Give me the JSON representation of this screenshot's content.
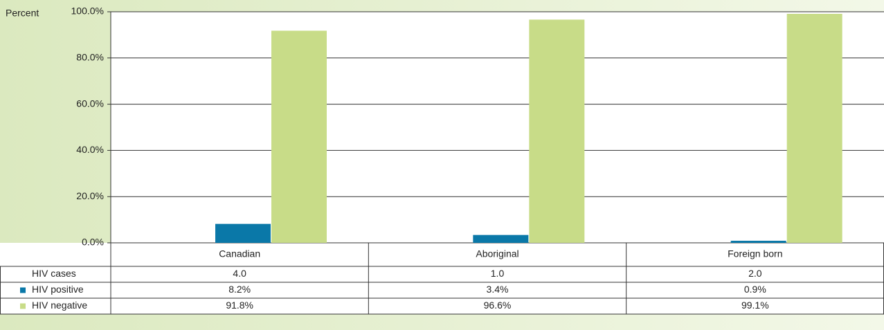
{
  "chart_data": {
    "type": "bar",
    "ylabel": "Percent",
    "categories": [
      "Canadian",
      "Aboriginal",
      "Foreign born"
    ],
    "cases": {
      "name": "HIV cases",
      "values": [
        4,
        1,
        2
      ],
      "value_labels": [
        "4.0",
        "1.0",
        "2.0"
      ]
    },
    "series": [
      {
        "name": "HIV positive",
        "color": "#0a78a8",
        "values": [
          8.2,
          3.4,
          0.9
        ],
        "value_labels": [
          "8.2%",
          "3.4%",
          "0.9%"
        ]
      },
      {
        "name": "HIV negative",
        "color": "#c8dc88",
        "values": [
          91.8,
          96.6,
          99.1
        ],
        "value_labels": [
          "91.8%",
          "96.6%",
          "99.1%"
        ]
      }
    ],
    "ylim": [
      0,
      100
    ],
    "yticks": [
      {
        "value": 0,
        "label": "0.0%"
      },
      {
        "value": 20,
        "label": "20.0%"
      },
      {
        "value": 40,
        "label": "40.0%"
      },
      {
        "value": 60,
        "label": "60.0%"
      },
      {
        "value": 80,
        "label": "80.0%"
      },
      {
        "value": 100,
        "label": "100.0%"
      }
    ],
    "grid": true
  }
}
